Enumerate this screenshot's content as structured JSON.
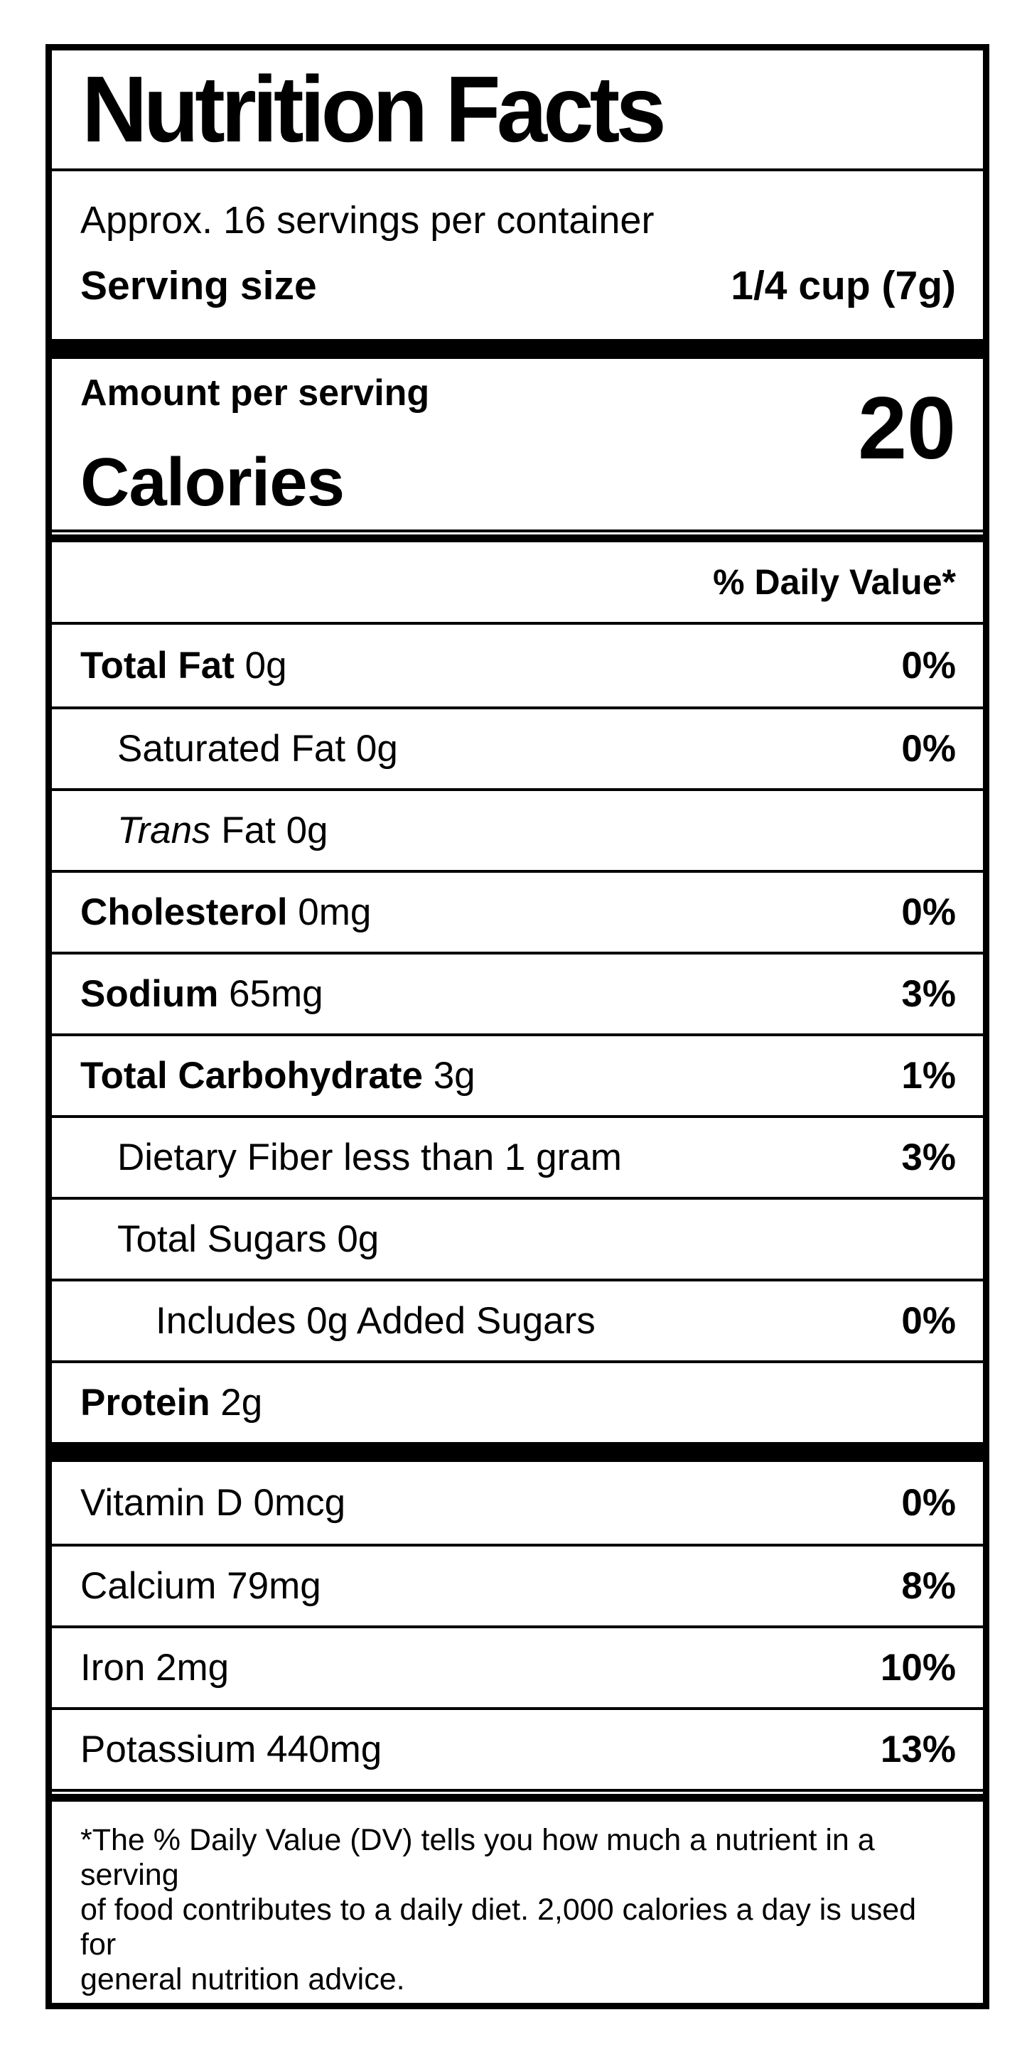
{
  "label": {
    "title": "Nutrition Facts",
    "servings_per_container": "Approx. 16 servings per container",
    "serving_size_label": "Serving size",
    "serving_size_value": "1/4 cup (7g)",
    "amount_per_serving": "Amount per serving",
    "calories_label": "Calories",
    "calories_value": "20",
    "daily_value_header": "% Daily Value*",
    "nutrients": [
      {
        "id": "total-fat",
        "parts": [
          {
            "t": "Total Fat",
            "b": true
          },
          {
            "t": " 0g"
          }
        ],
        "dv": "0%",
        "indent": 0
      },
      {
        "id": "saturated-fat",
        "parts": [
          {
            "t": "Saturated Fat 0g"
          }
        ],
        "dv": "0%",
        "indent": 1
      },
      {
        "id": "trans-fat",
        "parts": [
          {
            "t": "Trans",
            "i": true
          },
          {
            "t": " Fat 0g"
          }
        ],
        "dv": "",
        "indent": 1
      },
      {
        "id": "cholesterol",
        "parts": [
          {
            "t": "Cholesterol",
            "b": true
          },
          {
            "t": " 0mg"
          }
        ],
        "dv": "0%",
        "indent": 0
      },
      {
        "id": "sodium",
        "parts": [
          {
            "t": "Sodium",
            "b": true
          },
          {
            "t": " 65mg"
          }
        ],
        "dv": "3%",
        "indent": 0
      },
      {
        "id": "total-carbohydrate",
        "parts": [
          {
            "t": "Total Carbohydrate",
            "b": true
          },
          {
            "t": " 3g"
          }
        ],
        "dv": "1%",
        "indent": 0
      },
      {
        "id": "dietary-fiber",
        "parts": [
          {
            "t": "Dietary Fiber less than 1 gram"
          }
        ],
        "dv": "3%",
        "indent": 1
      },
      {
        "id": "total-sugars",
        "parts": [
          {
            "t": "Total Sugars 0g"
          }
        ],
        "dv": "",
        "indent": 1
      },
      {
        "id": "added-sugars",
        "parts": [
          {
            "t": "Includes 0g Added Sugars"
          }
        ],
        "dv": "0%",
        "indent": 2
      },
      {
        "id": "protein",
        "parts": [
          {
            "t": "Protein",
            "b": true
          },
          {
            "t": " 2g"
          }
        ],
        "dv": "",
        "indent": 0
      }
    ],
    "micronutrients": [
      {
        "id": "vitamin-d",
        "parts": [
          {
            "t": "Vitamin D 0mcg"
          }
        ],
        "dv": "0%",
        "indent": 0
      },
      {
        "id": "calcium",
        "parts": [
          {
            "t": "Calcium 79mg"
          }
        ],
        "dv": "8%",
        "indent": 0
      },
      {
        "id": "iron",
        "parts": [
          {
            "t": "Iron 2mg"
          }
        ],
        "dv": "10%",
        "indent": 0
      },
      {
        "id": "potassium",
        "parts": [
          {
            "t": "Potassium 440mg"
          }
        ],
        "dv": "13%",
        "indent": 0
      }
    ],
    "footnote_lines": [
      "*The % Daily Value (DV) tells you how much a nutrient in a serving",
      "of food contributes to a daily diet. 2,000 calories a day is used for",
      "general nutrition advice."
    ]
  }
}
